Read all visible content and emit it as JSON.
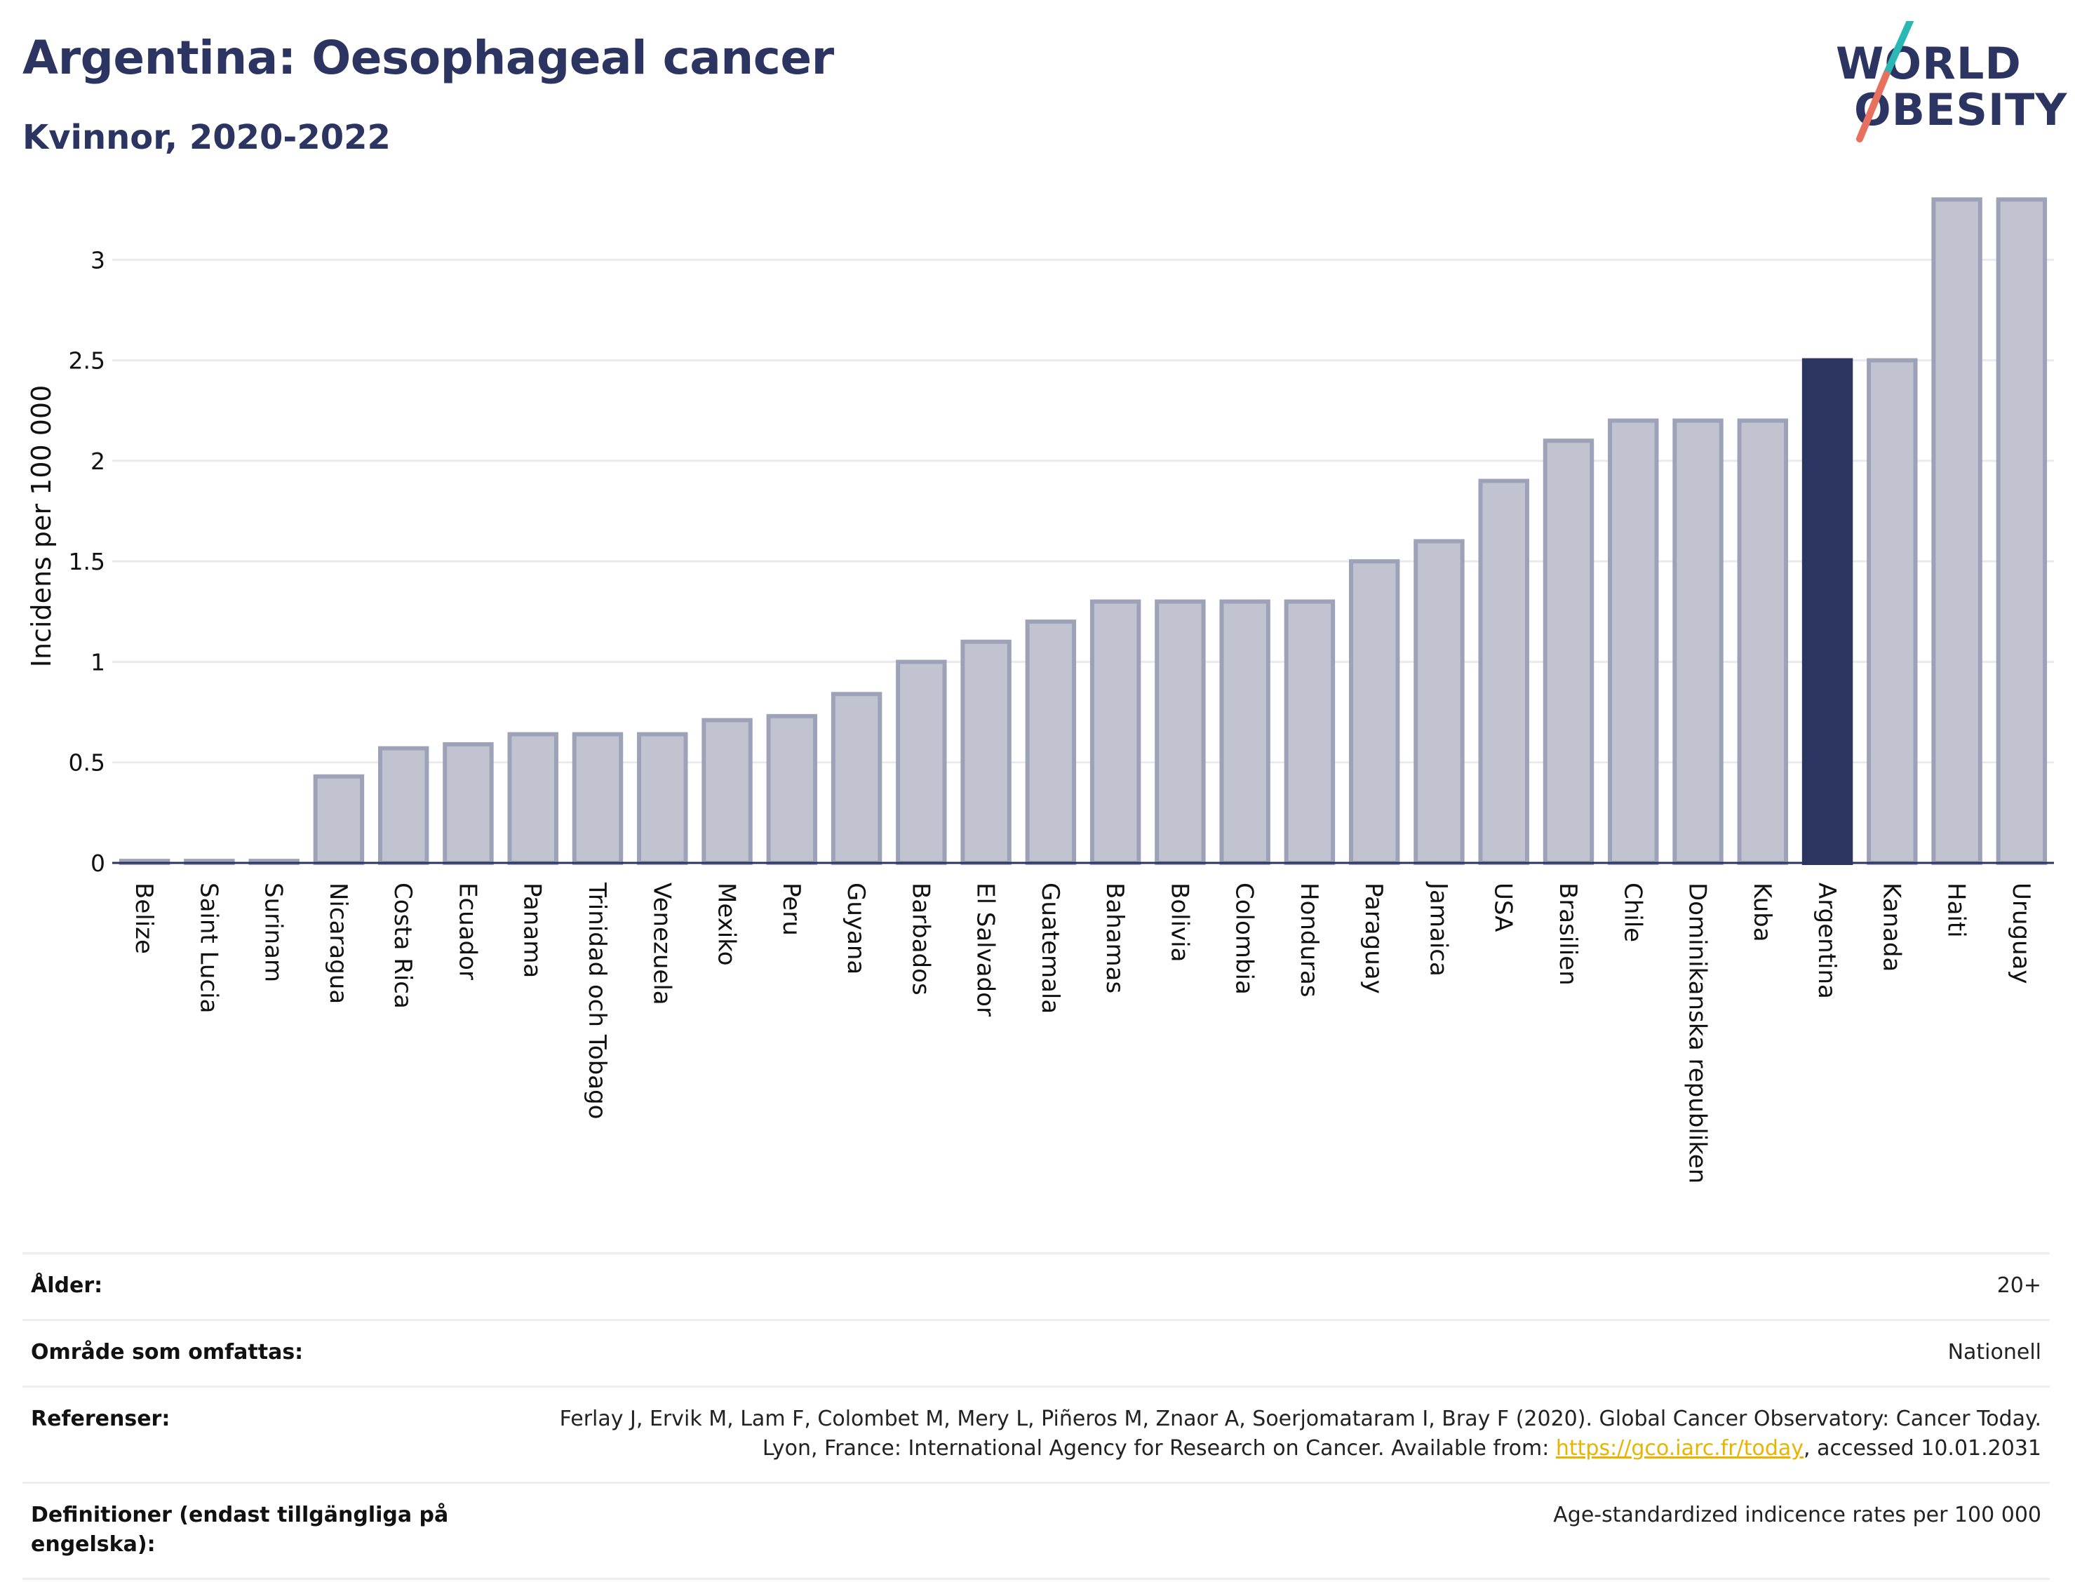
{
  "header": {
    "title": "Argentina: Oesophageal cancer",
    "subtitle": "Kvinnor, 2020-2022"
  },
  "logo": {
    "line1": "WORLD",
    "line2": "OBESITY",
    "colors": {
      "text": "#2c3561",
      "slash_top": "#2bb7b3",
      "slash_bottom": "#e8705f"
    }
  },
  "chart_data": {
    "type": "bar",
    "ylabel": "Incidens per 100 000",
    "ylim": [
      0,
      3.35
    ],
    "yticks": [
      0,
      0.5,
      1,
      1.5,
      2,
      2.5,
      3
    ],
    "ytick_labels": [
      "0",
      "0.5",
      "1",
      "1.5",
      "2",
      "2.5",
      "3"
    ],
    "grid": true,
    "categories": [
      "Belize",
      "Saint Lucia",
      "Surinam",
      "Nicaragua",
      "Costa Rica",
      "Ecuador",
      "Panama",
      "Trinidad och Tobago",
      "Venezuela",
      "Mexiko",
      "Peru",
      "Guyana",
      "Barbados",
      "El Salvador",
      "Guatemala",
      "Bahamas",
      "Bolivia",
      "Colombia",
      "Honduras",
      "Paraguay",
      "Jamaica",
      "USA",
      "Brasilien",
      "Chile",
      "Dominikanska republiken",
      "Kuba",
      "Argentina",
      "Kanada",
      "Haiti",
      "Uruguay"
    ],
    "values": [
      0.01,
      0.01,
      0.01,
      0.43,
      0.57,
      0.59,
      0.64,
      0.64,
      0.64,
      0.71,
      0.73,
      0.84,
      1.0,
      1.1,
      1.2,
      1.3,
      1.3,
      1.3,
      1.3,
      1.5,
      1.6,
      1.9,
      2.1,
      2.2,
      2.2,
      2.2,
      2.5,
      2.5,
      3.3,
      3.3
    ],
    "highlight": "Argentina",
    "colors": {
      "bar_fill": "#c1c4d0",
      "bar_stroke": "#9da2b9",
      "highlight": "#2c3561",
      "grid": "#e9eaee",
      "axis": "#2c3561"
    }
  },
  "meta": {
    "age_label": "Ålder:",
    "age_value": "20+",
    "area_label": "Område som omfattas:",
    "area_value": "Nationell",
    "refs_label": "Referenser:",
    "refs_text_1": "Ferlay J, Ervik M, Lam F, Colombet M, Mery L, Piñeros M, Znaor A, Soerjomataram I, Bray F (2020). Global Cancer Observatory: Cancer Today. Lyon, France: International Agency for Research on Cancer. Available from: ",
    "refs_link": "https://gco.iarc.fr/today",
    "refs_text_2": ", accessed 10.01.2031",
    "defs_label": "Definitioner (endast tillgängliga på engelska):",
    "defs_value": "Age-standardized indicence rates per 100 000"
  }
}
